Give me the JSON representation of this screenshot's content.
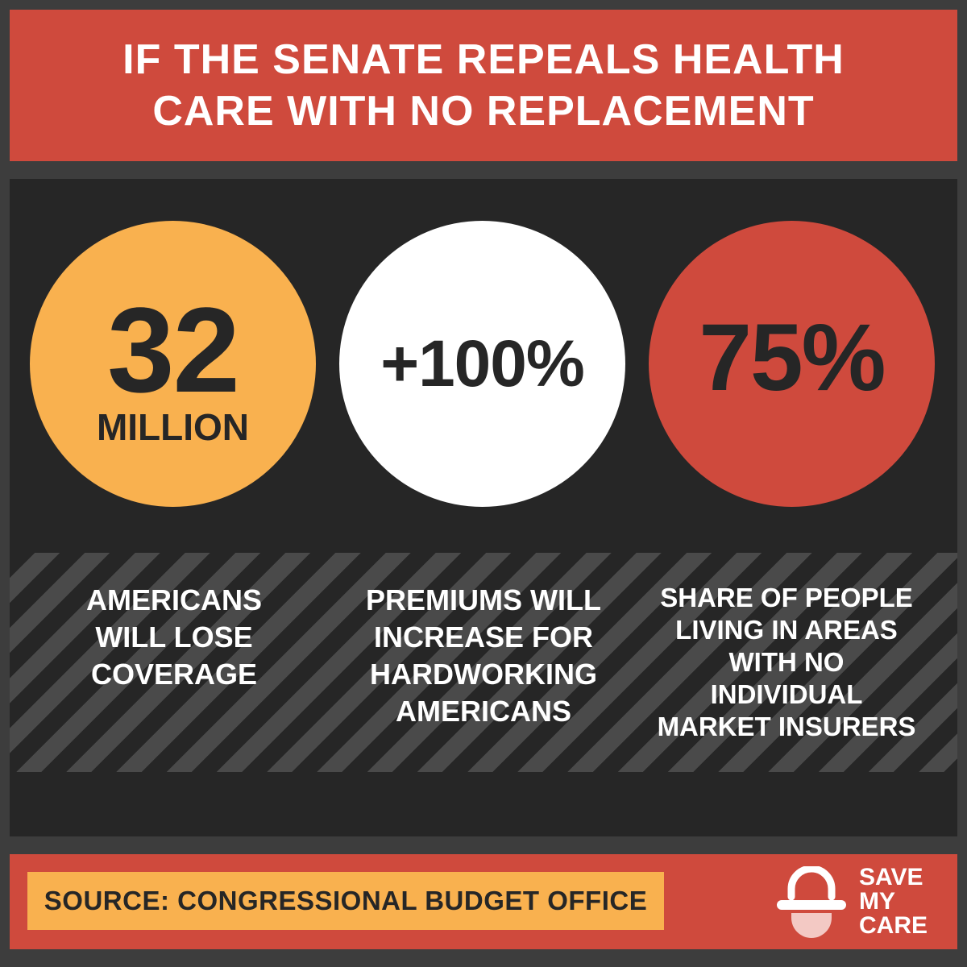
{
  "header": {
    "line1": "IF THE SENATE REPEALS HEALTH",
    "line2": "CARE WITH NO REPLACEMENT"
  },
  "stats": [
    {
      "value": "32",
      "unit": "MILLION",
      "caption": [
        "AMERICANS",
        "WILL LOSE",
        "COVERAGE"
      ]
    },
    {
      "value": "+100%",
      "caption": [
        "PREMIUMS WILL",
        "INCREASE FOR",
        "HARDWORKING",
        "AMERICANS"
      ]
    },
    {
      "value": "75%",
      "caption": [
        "SHARE OF PEOPLE",
        "LIVING IN AREAS",
        "WITH NO",
        "INDIVIDUAL",
        "MARKET INSURERS"
      ]
    }
  ],
  "footer": {
    "source": "SOURCE: CONGRESSIONAL BUDGET OFFICE",
    "logo_icon": "pill-capsule-icon",
    "logo_lines": [
      "SAVE",
      "MY",
      "CARE"
    ]
  },
  "colors": {
    "red": "#cf4a3d",
    "orange": "#f9b14f",
    "white": "#ffffff",
    "dark": "#262626",
    "frame": "#3d3d3d"
  }
}
